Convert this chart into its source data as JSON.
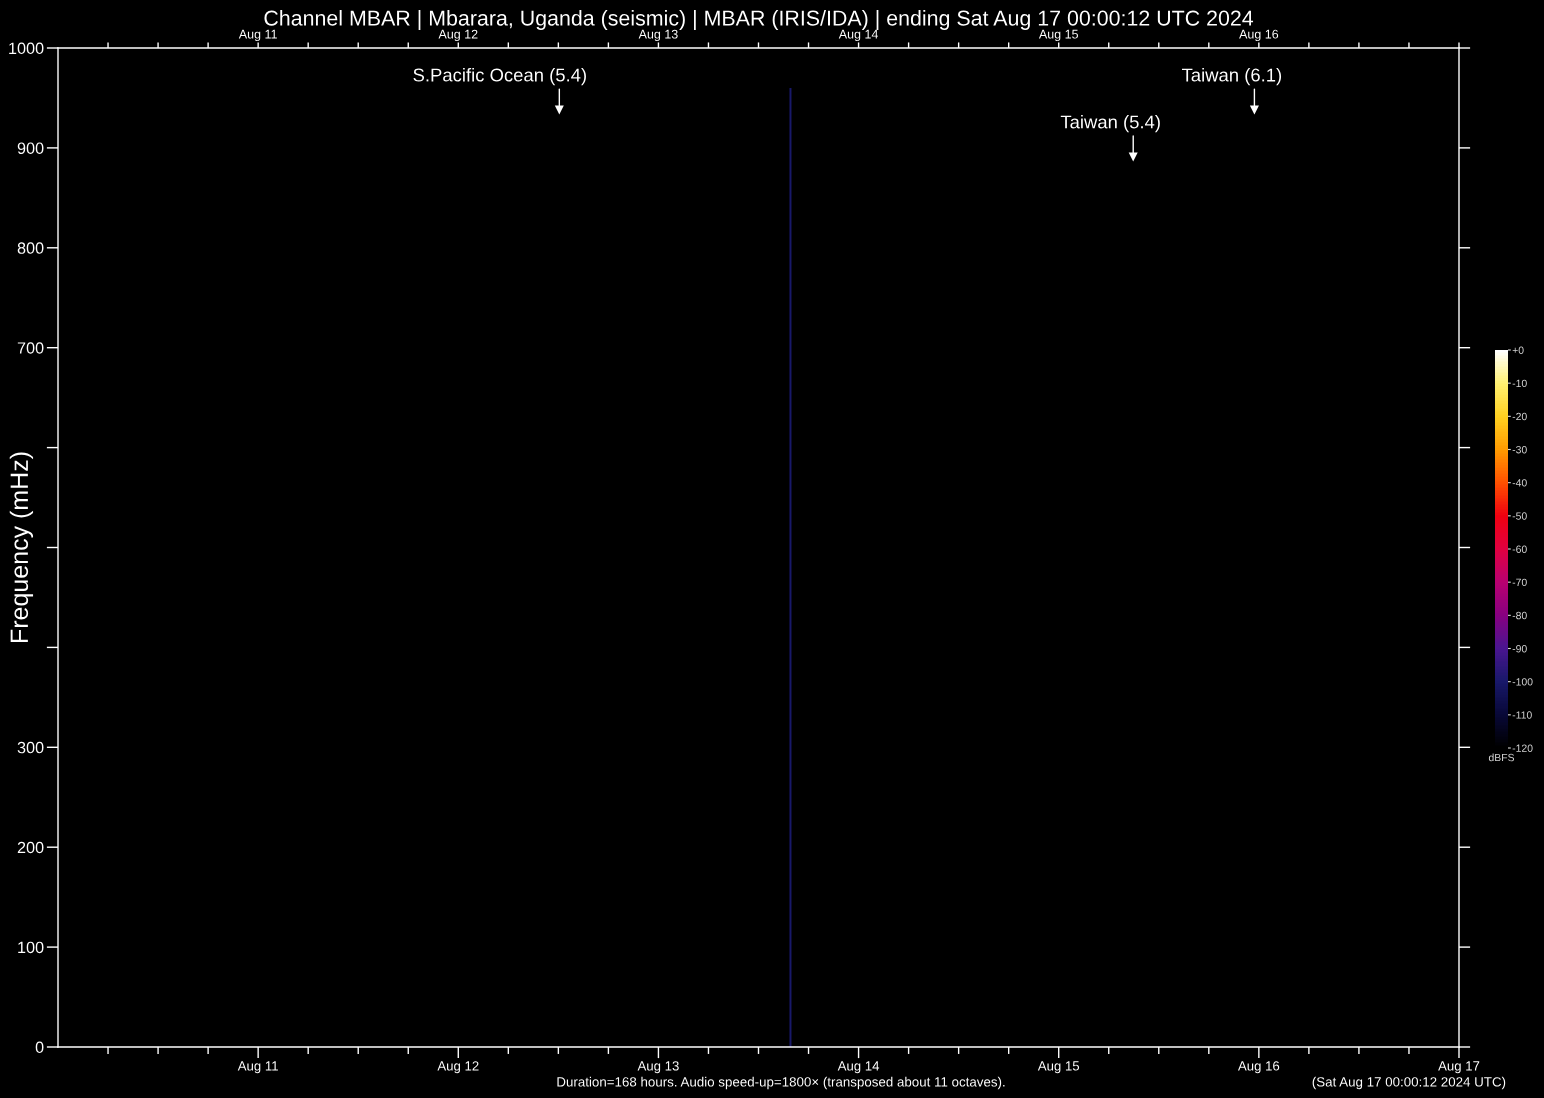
{
  "chart_data": {
    "type": "bar",
    "title": "Channel MBAR | Mbarara, Uganda (seismic) | MBAR (IRIS/IDA) | ending Sat Aug 17 00:00:12 UTC 2024",
    "ylabel": "Frequency (mHz)",
    "clabel": "dBFS",
    "series": [
      {
        "x": [
          "2024-08-13T15:50"
        ],
        "values": [
          960
        ],
        "cvalues": [
          -100
        ]
      },
      {
        "type": "scatter",
        "x": [
          "2024-08-12T12:07",
          "2024-08-15T23:28",
          "2024-08-15T08:56"
        ],
        "values": [
          938,
          938,
          891
        ],
        "color": "#ffffff",
        "marker": "triangle"
      }
    ],
    "clim": [
      -120,
      0
    ],
    "cticks": [
      {
        "value": 0,
        "label": "+0"
      },
      -10,
      -20,
      -30,
      -40,
      -50,
      -60,
      -70,
      -80,
      -90,
      -100,
      -110,
      -120
    ],
    "xlim": [
      "2024-08-10T00:00",
      "2024-08-17T00:00"
    ],
    "xticks": [
      {
        "value": "2024-08-10T06:00",
        "label": null
      },
      {
        "value": "2024-08-10T12:00",
        "label": null
      },
      {
        "value": "2024-08-10T18:00",
        "label": null
      },
      {
        "value": "2024-08-11",
        "label": "Aug 11"
      },
      {
        "value": "2024-08-11T06:00",
        "label": null
      },
      {
        "value": "2024-08-11T12:00",
        "label": null
      },
      {
        "value": "2024-08-11T18:00",
        "label": null
      },
      {
        "value": "2024-08-12",
        "label": "Aug 12"
      },
      {
        "value": "2024-08-12T06:00",
        "label": null
      },
      {
        "value": "2024-08-12T12:00",
        "label": null
      },
      {
        "value": "2024-08-12T18:00",
        "label": null
      },
      {
        "value": "2024-08-13",
        "label": "Aug 13"
      },
      {
        "value": "2024-08-13T06:00",
        "label": null
      },
      {
        "value": "2024-08-13T12:00",
        "label": null
      },
      {
        "value": "2024-08-13T18:00",
        "label": null
      },
      {
        "value": "2024-08-14",
        "label": "Aug 14"
      },
      {
        "value": "2024-08-14T06:00",
        "label": null
      },
      {
        "value": "2024-08-14T12:00",
        "label": null
      },
      {
        "value": "2024-08-14T18:00",
        "label": null
      },
      {
        "value": "2024-08-15",
        "label": "Aug 15"
      },
      {
        "value": "2024-08-15T06:00",
        "label": null
      },
      {
        "value": "2024-08-15T12:00",
        "label": null
      },
      {
        "value": "2024-08-15T18:00",
        "label": null
      },
      {
        "value": "2024-08-16",
        "label": "Aug 16"
      },
      {
        "value": "2024-08-16T06:00",
        "label": null
      },
      {
        "value": "2024-08-16T12:00",
        "label": null
      },
      {
        "value": "2024-08-16T18:00",
        "label": null
      },
      {
        "value": "2024-08-17",
        "label": "Aug 17"
      }
    ],
    "x2lim": [
      "2024-08-10T00:00",
      "2024-08-17T00:00"
    ],
    "x2ticks": [
      {
        "value": "2024-08-10T06:00",
        "label": null
      },
      {
        "value": "2024-08-10T12:00",
        "label": null
      },
      {
        "value": "2024-08-10T18:00",
        "label": null
      },
      {
        "value": "2024-08-11",
        "label": "Aug 11"
      },
      {
        "value": "2024-08-11T06:00",
        "label": null
      },
      {
        "value": "2024-08-11T12:00",
        "label": null
      },
      {
        "value": "2024-08-11T18:00",
        "label": null
      },
      {
        "value": "2024-08-12",
        "label": "Aug 12"
      },
      {
        "value": "2024-08-12T06:00",
        "label": null
      },
      {
        "value": "2024-08-12T12:00",
        "label": null
      },
      {
        "value": "2024-08-12T18:00",
        "label": null
      },
      {
        "value": "2024-08-13",
        "label": "Aug 13"
      },
      {
        "value": "2024-08-13T06:00",
        "label": null
      },
      {
        "value": "2024-08-13T12:00",
        "label": null
      },
      {
        "value": "2024-08-13T18:00",
        "label": null
      },
      {
        "value": "2024-08-14",
        "label": "Aug 14"
      },
      {
        "value": "2024-08-14T06:00",
        "label": null
      },
      {
        "value": "2024-08-14T12:00",
        "label": null
      },
      {
        "value": "2024-08-14T18:00",
        "label": null
      },
      {
        "value": "2024-08-15",
        "label": "Aug 15"
      },
      {
        "value": "2024-08-15T06:00",
        "label": null
      },
      {
        "value": "2024-08-15T12:00",
        "label": null
      },
      {
        "value": "2024-08-15T18:00",
        "label": null
      },
      {
        "value": "2024-08-16",
        "label": "Aug 16"
      },
      {
        "value": "2024-08-16T06:00",
        "label": null
      },
      {
        "value": "2024-08-16T12:00",
        "label": null
      },
      {
        "value": "2024-08-16T18:00",
        "label": null
      },
      {
        "value": "2024-08-17",
        "label": null
      }
    ],
    "ylim": [
      0,
      1000
    ],
    "yticks": [
      0,
      100,
      200,
      300,
      {
        "value": 400,
        "label": null
      },
      {
        "value": 500,
        "label": null
      },
      {
        "value": 600,
        "label": null
      },
      700,
      800,
      900,
      1000
    ],
    "annotations": [
      {
        "text": "S.Pacific Ocean (5.4)",
        "x": "2024-08-12T12:07",
        "y": 938
      },
      {
        "text": "Taiwan (6.1)",
        "x": "2024-08-15T23:28",
        "y": 938
      },
      {
        "text": "Taiwan (5.4)",
        "x": "2024-08-15T08:56",
        "y": 891
      },
      "Duration=168 hours. Audio speed-up=1800× (transposed about 11 octaves).",
      "(Sat Aug 17 00:00:12 2024 UTC)"
    ]
  }
}
